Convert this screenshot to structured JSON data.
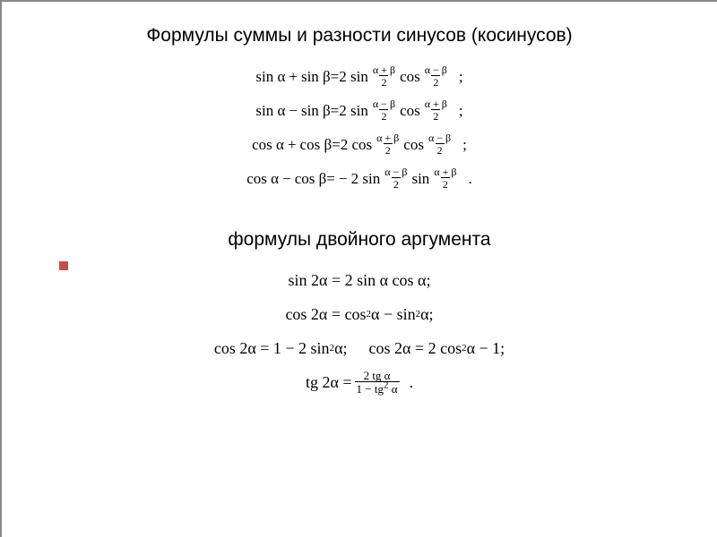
{
  "colors": {
    "accent": "#c0504d",
    "text": "#000000",
    "bg": "#ffffff",
    "border": "#888888"
  },
  "title1": "Формулы суммы и разности синусов (косинусов)",
  "title2": "формулы двойного аргумента",
  "block1": {
    "f1": {
      "lhs_a": "sin α",
      "op": "+",
      "lhs_b": "sin β",
      "eq": "=",
      "coef": "2 sin",
      "num1": "α + β",
      "den1": "2",
      "mid": "cos",
      "num2": "α − β",
      "den2": "2",
      "tail": ";"
    },
    "f2": {
      "lhs_a": "sin α",
      "op": "−",
      "lhs_b": "sin β",
      "eq": "=",
      "coef": "2 sin",
      "num1": "α − β",
      "den1": "2",
      "mid": "cos",
      "num2": "α + β",
      "den2": "2",
      "tail": ";"
    },
    "f3": {
      "lhs_a": "cos α",
      "op": "+",
      "lhs_b": "cos β",
      "eq": "=",
      "coef": "2 cos",
      "num1": "α + β",
      "den1": "2",
      "mid": "cos",
      "num2": "α − β",
      "den2": "2",
      "tail": ";"
    },
    "f4": {
      "lhs_a": "cos α",
      "op": "−",
      "lhs_b": "cos β",
      "eq": "=",
      "coef": "− 2 sin",
      "num1": "α − β",
      "den1": "2",
      "mid": "sin",
      "num2": "α + β",
      "den2": "2",
      "tail": "."
    }
  },
  "block2": {
    "g1": "sin 2α = 2 sin α cos α;",
    "g2_a": "cos 2α = cos",
    "g2_b": " α − sin",
    "g2_c": " α;",
    "g3_a": "cos 2α = 1 − 2 sin",
    "g3_b": " α;",
    "g3_c": "cos 2α = 2 cos",
    "g3_d": " α − 1;",
    "g4_a": "tg 2α =",
    "g4_num": "2 tg α",
    "g4_den_a": "1 − tg",
    "g4_den_b": " α",
    "g4_tail": "."
  },
  "exp2": "2"
}
